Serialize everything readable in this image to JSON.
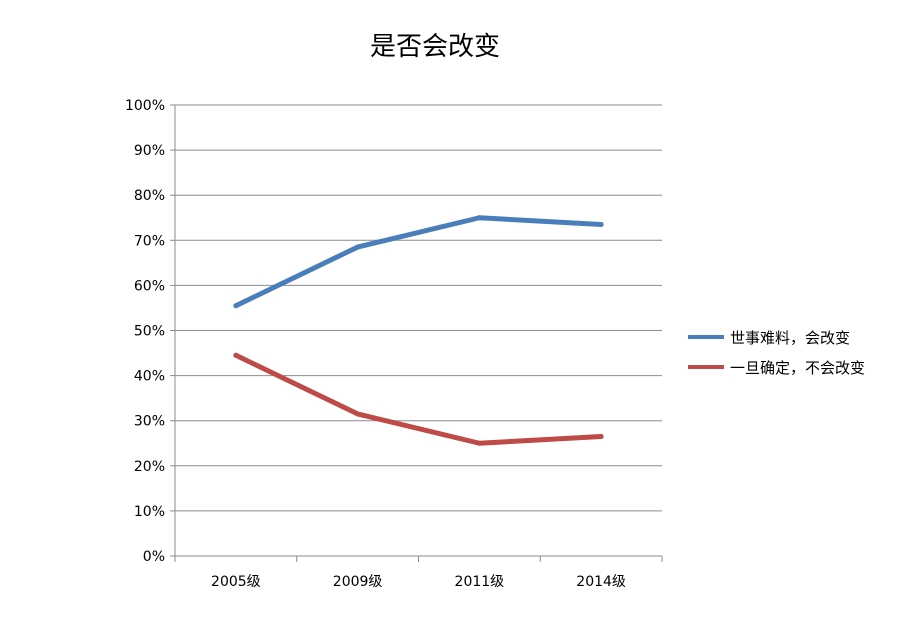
{
  "chart_data": {
    "type": "line",
    "title": "是否会改变",
    "categories": [
      "2005级",
      "2009级",
      "2011级",
      "2014级"
    ],
    "y_ticks": [
      "0%",
      "10%",
      "20%",
      "30%",
      "40%",
      "50%",
      "60%",
      "70%",
      "80%",
      "90%",
      "100%"
    ],
    "ylim": [
      0,
      100
    ],
    "grid": true,
    "legend_position": "right",
    "series": [
      {
        "name": "世事难料，会改变",
        "color": "#4a7ebb",
        "values": [
          55.5,
          68.5,
          75,
          73.5
        ]
      },
      {
        "name": "一旦确定，不会改变",
        "color": "#be4b48",
        "values": [
          44.5,
          31.5,
          25,
          26.5
        ]
      }
    ]
  }
}
